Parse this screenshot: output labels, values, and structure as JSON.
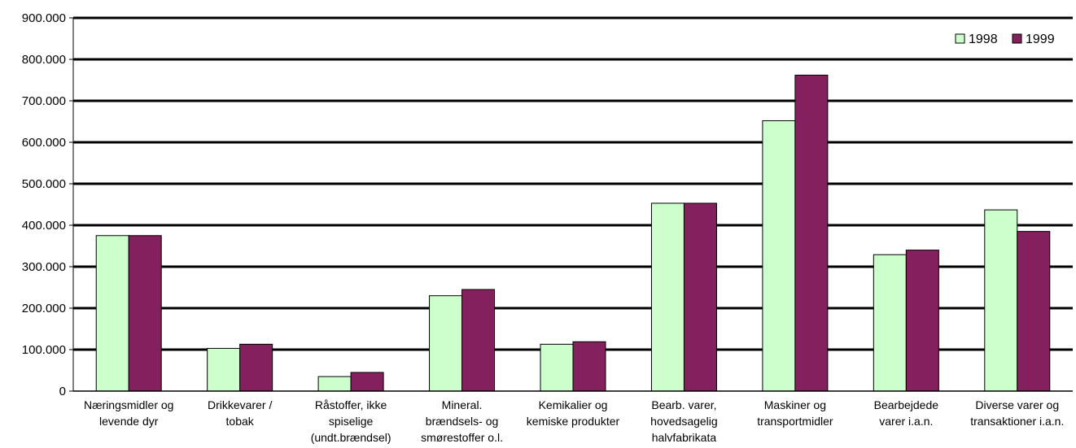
{
  "chart_data": {
    "type": "bar",
    "categories": [
      [
        "Næringsmidler og",
        "levende dyr"
      ],
      [
        "Drikkevarer /",
        "tobak"
      ],
      [
        "Råstoffer, ikke",
        "spiselige",
        "(undt.brændsel)"
      ],
      [
        "Mineral.",
        "brændsels- og",
        "smørestoffer o.l."
      ],
      [
        "Kemikalier og",
        "kemiske produkter"
      ],
      [
        "Bearb. varer,",
        "hovedsagelig",
        "halvfabrikata"
      ],
      [
        "Maskiner og",
        "transportmidler"
      ],
      [
        "Bearbejdede",
        "varer i.a.n."
      ],
      [
        "Diverse varer og",
        "transaktioner i.a.n."
      ]
    ],
    "series": [
      {
        "name": "1998",
        "color": "#ccffcc",
        "values": [
          375000,
          103000,
          35000,
          230000,
          113000,
          453000,
          652000,
          329000,
          437000
        ]
      },
      {
        "name": "1999",
        "color": "#85205e",
        "values": [
          375000,
          113000,
          45000,
          245000,
          119000,
          453000,
          762000,
          340000,
          385000
        ]
      }
    ],
    "ylim": [
      0,
      900000
    ],
    "yticks": [
      0,
      100000,
      200000,
      300000,
      400000,
      500000,
      600000,
      700000,
      800000,
      900000
    ],
    "ytick_labels": [
      "0",
      "100.000",
      "200.000",
      "300.000",
      "400.000",
      "500.000",
      "600.000",
      "700.000",
      "800.000",
      "900.000"
    ],
    "grid": true,
    "legend_position": "top-right"
  }
}
